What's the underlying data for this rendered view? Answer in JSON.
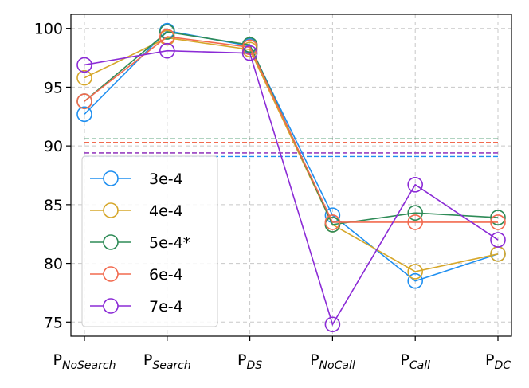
{
  "chart_data": {
    "type": "line",
    "title": "",
    "xlabel": "",
    "ylabel": "",
    "categories": [
      {
        "base": "P",
        "sub": "NoSearch"
      },
      {
        "base": "P",
        "sub": "Search"
      },
      {
        "base": "P",
        "sub": "DS"
      },
      {
        "base": "P",
        "sub": "NoCall"
      },
      {
        "base": "P",
        "sub": "Call"
      },
      {
        "base": "P",
        "sub": "DC"
      }
    ],
    "ylim": [
      73.8,
      101.2
    ],
    "yticks": [
      75,
      80,
      85,
      90,
      95,
      100
    ],
    "grid": true,
    "legend_position": "lower-left",
    "series": [
      {
        "name": "3e-4",
        "color": "#1f8ff0",
        "values": [
          92.7,
          99.8,
          98.5,
          84.1,
          78.5,
          80.8
        ],
        "mean": 89.1
      },
      {
        "name": "4e-4",
        "color": "#d6a72a",
        "values": [
          95.8,
          99.2,
          98.2,
          83.3,
          79.3,
          80.8
        ],
        "mean": 89.4
      },
      {
        "name": "5e-4*",
        "color": "#2e8b57",
        "values": [
          93.8,
          99.7,
          98.6,
          83.3,
          84.3,
          83.9
        ],
        "mean": 90.6
      },
      {
        "name": "6e-4",
        "color": "#f26a4f",
        "values": [
          93.8,
          99.3,
          98.4,
          83.5,
          83.5,
          83.5
        ],
        "mean": 90.3
      },
      {
        "name": "7e-4",
        "color": "#8b2bd6",
        "values": [
          96.9,
          98.1,
          97.9,
          74.8,
          86.7,
          82.0
        ],
        "mean": 89.4
      }
    ]
  }
}
